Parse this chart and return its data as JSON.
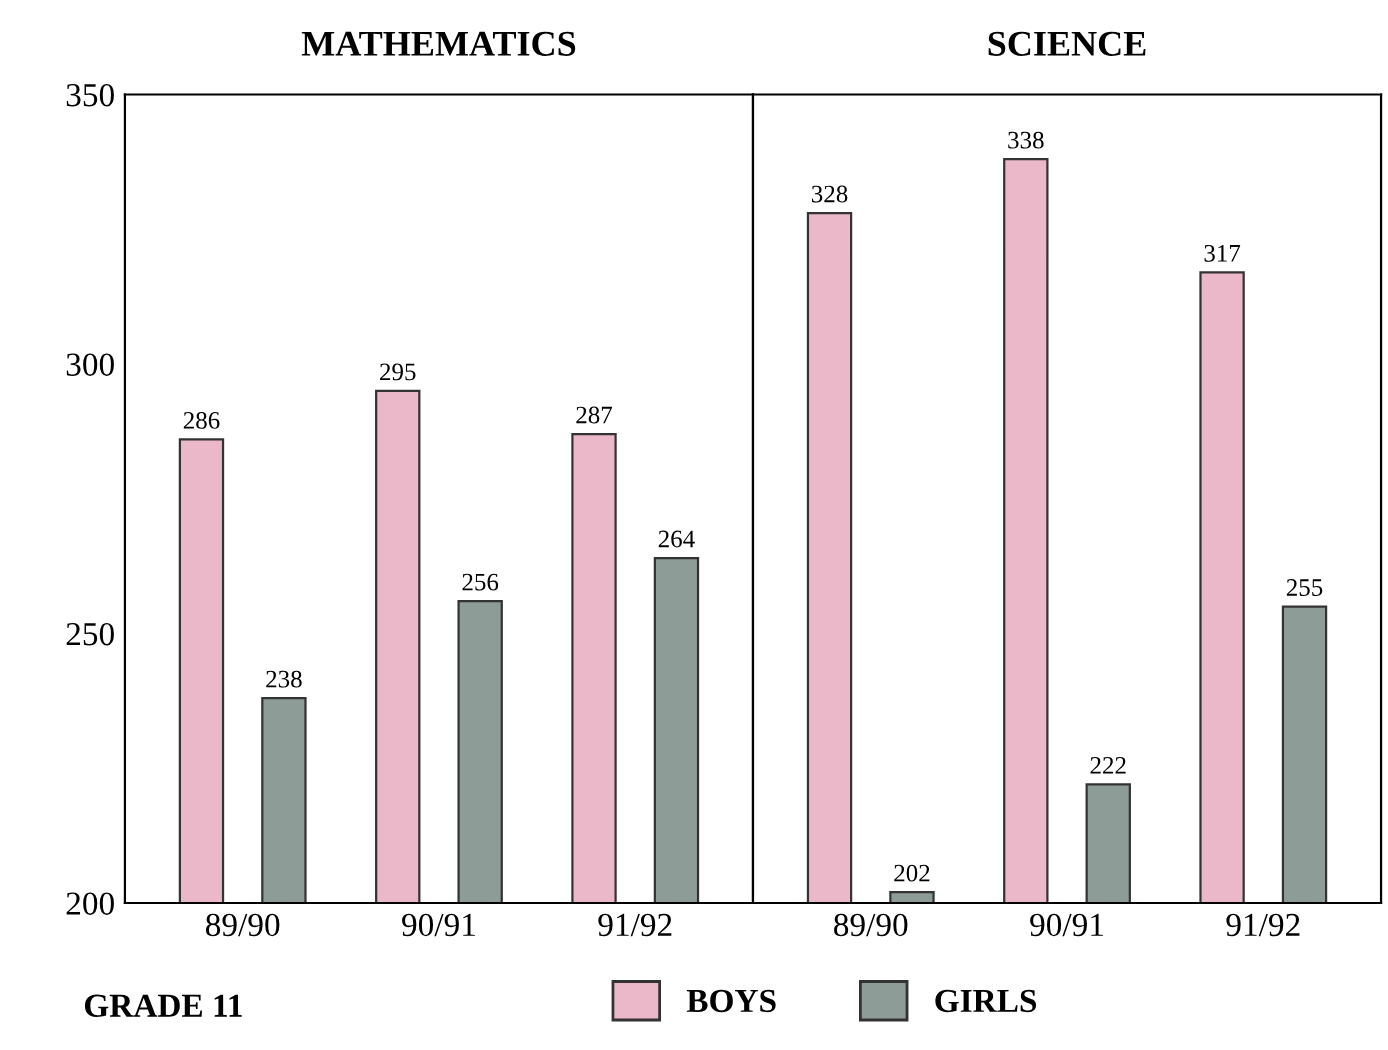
{
  "chart_data": [
    {
      "type": "bar",
      "title": "MATHEMATICS",
      "categories": [
        "89/90",
        "90/91",
        "91/92"
      ],
      "ylim": [
        200,
        350
      ],
      "yticks": [
        200,
        250,
        300,
        350
      ],
      "data_labels": true,
      "legend": "bottom",
      "legend_title": "GRADE 11",
      "series": [
        {
          "name": "BOYS",
          "color": "#eab8c8",
          "values": [
            286,
            295,
            287
          ]
        },
        {
          "name": "GIRLS",
          "color": "#8e9c98",
          "values": [
            238,
            256,
            264
          ]
        }
      ]
    },
    {
      "type": "bar",
      "title": "SCIENCE",
      "categories": [
        "89/90",
        "90/91",
        "91/92"
      ],
      "ylim": [
        200,
        350
      ],
      "tick_labels": "x",
      "data_labels": true,
      "series": [
        {
          "color": "#eab8c8",
          "values": [
            328,
            338,
            317
          ]
        },
        {
          "color": "#8e9c98",
          "values": [
            202,
            222,
            255
          ]
        }
      ]
    }
  ]
}
